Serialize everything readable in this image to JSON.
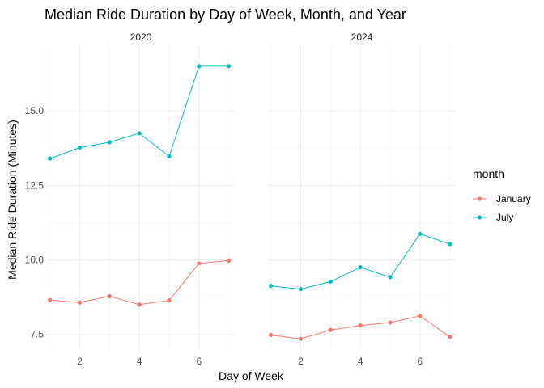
{
  "chart_data": {
    "type": "line",
    "title": "Median Ride Duration by Day of Week, Month, and Year",
    "xlabel": "Day of Week",
    "ylabel": "Median Ride Duration (Minutes)",
    "legend_title": "month",
    "legend_position": "right",
    "grid": true,
    "xlim": [
      0.9,
      7.2
    ],
    "ylim": [
      6.95,
      17.2
    ],
    "x_ticks": [
      2,
      4,
      6
    ],
    "y_ticks": [
      7.5,
      10.0,
      12.5,
      15.0
    ],
    "y_tick_labels": [
      "7.5",
      "10.0",
      "12.5",
      "15.0"
    ],
    "x_tick_labels": [
      "2",
      "4",
      "6"
    ],
    "panels": [
      {
        "label": "2020",
        "series": [
          {
            "name": "January",
            "color": "#F8766D",
            "x": [
              1,
              2,
              3,
              4,
              5,
              6,
              7
            ],
            "values": [
              8.65,
              8.57,
              8.78,
              8.5,
              8.64,
              9.88,
              9.98
            ]
          },
          {
            "name": "July",
            "color": "#00BFC4",
            "x": [
              1,
              2,
              3,
              4,
              5,
              6,
              7
            ],
            "values": [
              13.4,
              13.77,
              13.95,
              14.25,
              13.47,
              16.5,
              16.5
            ]
          }
        ]
      },
      {
        "label": "2024",
        "series": [
          {
            "name": "January",
            "color": "#F8766D",
            "x": [
              1,
              2,
              3,
              4,
              5,
              6,
              7
            ],
            "values": [
              7.48,
              7.35,
              7.65,
              7.8,
              7.9,
              8.12,
              7.42
            ]
          },
          {
            "name": "July",
            "color": "#00BFC4",
            "x": [
              1,
              2,
              3,
              4,
              5,
              6,
              7
            ],
            "values": [
              9.13,
              9.02,
              9.27,
              9.75,
              9.42,
              10.87,
              10.53
            ]
          }
        ]
      }
    ],
    "legend": [
      {
        "name": "January",
        "color": "#F8766D"
      },
      {
        "name": "July",
        "color": "#00BFC4"
      }
    ]
  }
}
